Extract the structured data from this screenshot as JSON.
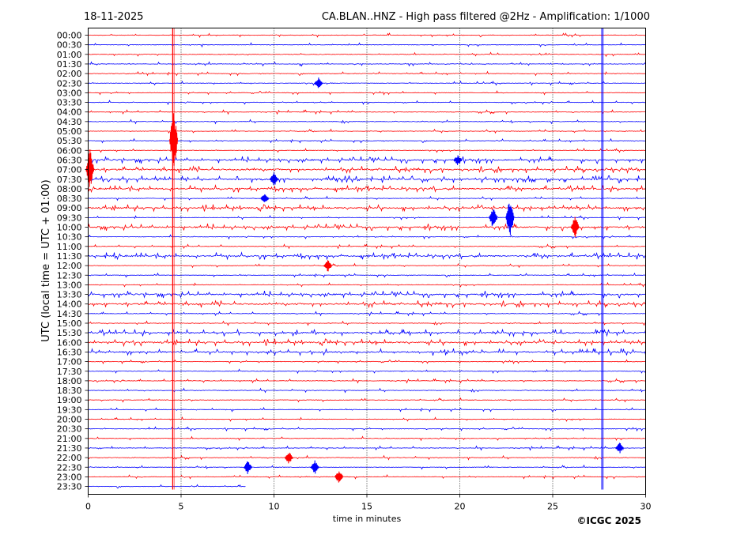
{
  "chart_data": {
    "type": "helicorder",
    "date": "18-11-2025",
    "title": "CA.BLAN..HNZ - High pass filtered @2Hz - Amplification: 1/1000",
    "ylabel": "UTC (local time = UTC + 01:00)",
    "xlabel": "time in minutes",
    "copyright": "©ICGC 2025",
    "xlim": [
      0,
      30
    ],
    "xticks": [
      0,
      5,
      10,
      15,
      20,
      25,
      30
    ],
    "rows": [
      "00:00",
      "00:30",
      "01:00",
      "01:30",
      "02:00",
      "02:30",
      "03:00",
      "03:30",
      "04:00",
      "04:30",
      "05:00",
      "05:30",
      "06:00",
      "06:30",
      "07:00",
      "07:30",
      "08:00",
      "08:30",
      "09:00",
      "09:30",
      "10:00",
      "10:30",
      "11:00",
      "11:30",
      "12:00",
      "12:30",
      "13:00",
      "13:30",
      "14:00",
      "14:30",
      "15:00",
      "15:30",
      "16:00",
      "16:30",
      "17:00",
      "17:30",
      "18:00",
      "18:30",
      "19:00",
      "19:30",
      "20:00",
      "20:30",
      "21:00",
      "21:30",
      "22:00",
      "22:30",
      "23:00",
      "23:30"
    ],
    "trace_colors": [
      "#ff0000",
      "#0000ff"
    ],
    "trace_end_minute_last_row": 8.5,
    "events": [
      {
        "row": "05:30",
        "minute": 4.6,
        "amp": 3.5,
        "color": "#ff0000"
      },
      {
        "row": "07:00",
        "minute": 0.1,
        "amp": 2.2,
        "color": "#ff0000"
      },
      {
        "row": "09:30",
        "minute": 22.7,
        "amp": 2.2,
        "color": "#0000ff"
      },
      {
        "row": "09:30",
        "minute": 21.8,
        "amp": 1.3,
        "color": "#0000ff"
      },
      {
        "row": "10:00",
        "minute": 26.2,
        "amp": 1.2,
        "color": "#ff0000"
      },
      {
        "row": "07:30",
        "minute": 10.0,
        "amp": 0.9,
        "color": "#0000ff"
      },
      {
        "row": "12:00",
        "minute": 12.9,
        "amp": 0.7,
        "color": "#ff0000"
      },
      {
        "row": "22:00",
        "minute": 10.8,
        "amp": 0.7,
        "color": "#ff0000"
      },
      {
        "row": "22:30",
        "minute": 8.6,
        "amp": 0.8,
        "color": "#0000ff"
      },
      {
        "row": "22:30",
        "minute": 12.2,
        "amp": 0.8,
        "color": "#0000ff"
      },
      {
        "row": "23:00",
        "minute": 13.5,
        "amp": 0.8,
        "color": "#ff0000"
      },
      {
        "row": "02:30",
        "minute": 12.4,
        "amp": 0.6,
        "color": "#0000ff"
      },
      {
        "row": "21:30",
        "minute": 28.6,
        "amp": 0.6,
        "color": "#0000ff"
      },
      {
        "row": "06:30",
        "minute": 19.9,
        "amp": 0.6,
        "color": "#0000ff"
      },
      {
        "row": "08:30",
        "minute": 9.5,
        "amp": 0.6,
        "color": "#0000ff"
      }
    ],
    "vertical_artifacts": [
      {
        "minute": 4.55,
        "from_row": "00:00",
        "to_row": "23:30",
        "color": "#ff0000"
      },
      {
        "minute": 27.65,
        "from_row": "00:00",
        "to_row": "23:30",
        "color": "#0000ff"
      }
    ],
    "active_rows": [
      "06:30",
      "07:00",
      "07:30",
      "08:00",
      "09:00",
      "10:00",
      "11:30",
      "13:30",
      "14:00",
      "15:30",
      "16:00",
      "16:30"
    ]
  }
}
